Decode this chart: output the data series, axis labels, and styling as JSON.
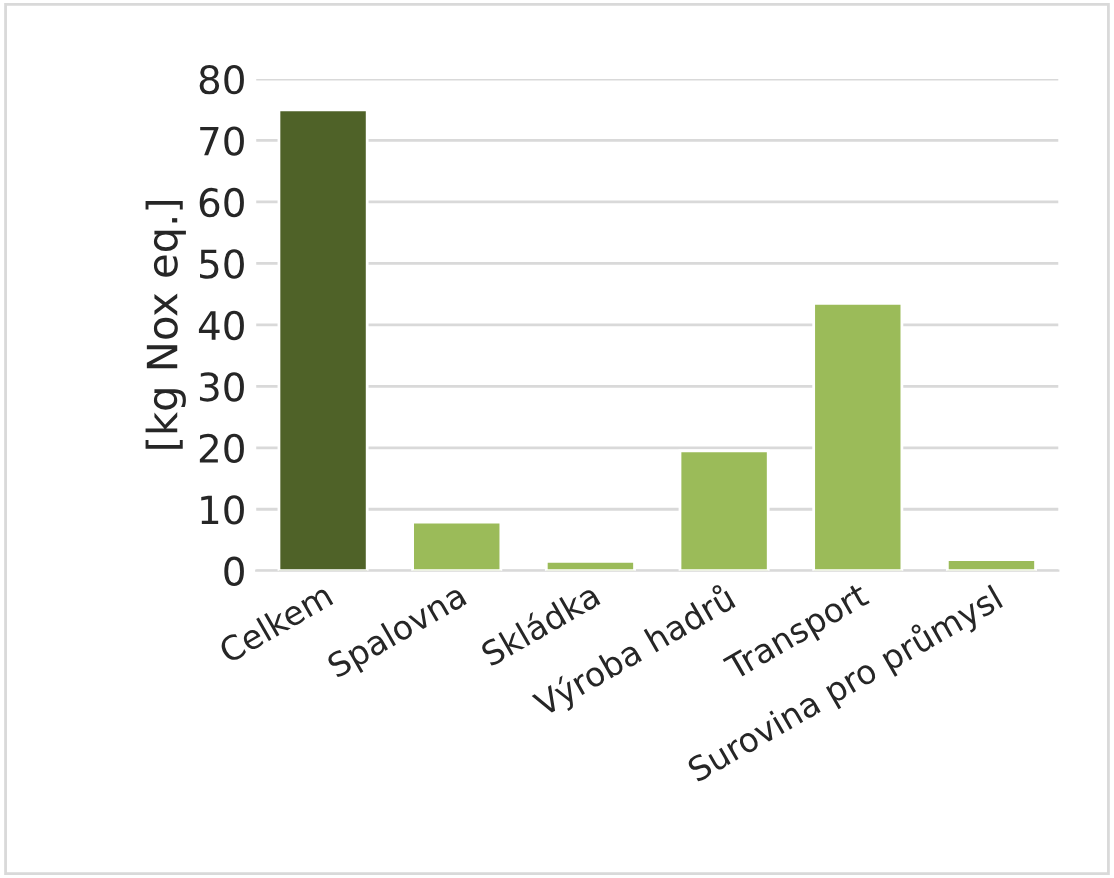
{
  "chart_data": {
    "type": "bar",
    "ylabel": "[kg Nox eq.]",
    "categories": [
      "Celkem",
      "Spalovna",
      "Skládka",
      "Výroba hadrů",
      "Transport",
      "Surovina pro průmysl"
    ],
    "values": [
      75,
      7.9,
      1.5,
      19.5,
      43.5,
      1.8
    ],
    "colors": [
      "#4f6228",
      "#9bbb59",
      "#9bbb59",
      "#9bbb59",
      "#9bbb59",
      "#9bbb59"
    ],
    "ylim": [
      0,
      80
    ],
    "yticks": [
      0,
      10,
      20,
      30,
      40,
      50,
      60,
      70,
      80
    ],
    "grid": "y"
  }
}
